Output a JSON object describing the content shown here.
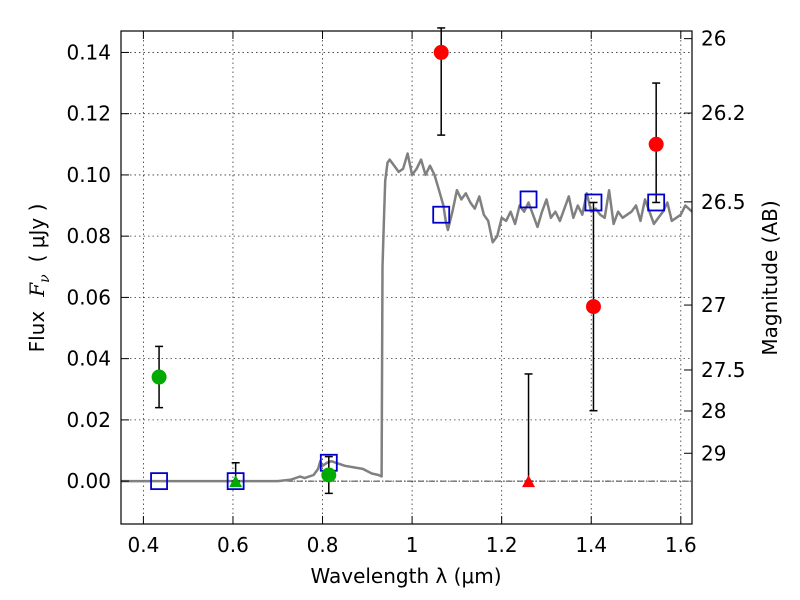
{
  "chart_data": {
    "type": "scatter",
    "xlabel": "Wavelength  λ (μm)",
    "ylabel": "Flux  F_ν  ( μJy )",
    "ylabel_prefix": "Flux",
    "ylabel_symbol": "F",
    "ylabel_sub": "ν",
    "ylabel_unit": "( μJy )",
    "y2label": "Magnitude (AB)",
    "xlim": [
      0.35,
      1.625
    ],
    "ylim": [
      -0.014,
      0.147
    ],
    "grid": true,
    "x_ticks": [
      0.4,
      0.6,
      0.8,
      1.0,
      1.2,
      1.4,
      1.6
    ],
    "x_tick_labels": [
      "0.4",
      "0.6",
      "0.8",
      "1",
      "1.2",
      "1.4",
      "1.6"
    ],
    "y_ticks": [
      0.0,
      0.02,
      0.04,
      0.06,
      0.08,
      0.1,
      0.12,
      0.14
    ],
    "y_tick_labels": [
      "0.00",
      "0.02",
      "0.04",
      "0.06",
      "0.08",
      "0.10",
      "0.12",
      "0.14"
    ],
    "mag_ticks": [
      {
        "label": "26",
        "flux": 0.1445
      },
      {
        "label": "26.2",
        "flux": 0.1202
      },
      {
        "label": "26.5",
        "flux": 0.0912
      },
      {
        "label": "27",
        "flux": 0.0575
      },
      {
        "label": "27.5",
        "flux": 0.0363
      },
      {
        "label": "28",
        "flux": 0.0229
      },
      {
        "label": "29",
        "flux": 0.0091
      }
    ],
    "colors": {
      "model": "#808080",
      "synthetic": "#0000cc",
      "optical": "#00aa00",
      "nir": "#ff0000",
      "errorbar": "#000000"
    },
    "model_spectrum": {
      "x": [
        0.35,
        0.4,
        0.5,
        0.6,
        0.7,
        0.73,
        0.75,
        0.76,
        0.78,
        0.79,
        0.795,
        0.8,
        0.81,
        0.82,
        0.83,
        0.85,
        0.87,
        0.89,
        0.91,
        0.925,
        0.932,
        0.934,
        0.937,
        0.94,
        0.945,
        0.95,
        0.96,
        0.97,
        0.98,
        0.99,
        1.0,
        1.01,
        1.02,
        1.03,
        1.04,
        1.05,
        1.06,
        1.07,
        1.075,
        1.08,
        1.09,
        1.1,
        1.11,
        1.12,
        1.13,
        1.14,
        1.15,
        1.16,
        1.17,
        1.18,
        1.19,
        1.2,
        1.21,
        1.22,
        1.23,
        1.24,
        1.25,
        1.26,
        1.27,
        1.28,
        1.29,
        1.3,
        1.31,
        1.32,
        1.33,
        1.34,
        1.35,
        1.36,
        1.37,
        1.38,
        1.39,
        1.4,
        1.41,
        1.42,
        1.43,
        1.44,
        1.45,
        1.46,
        1.47,
        1.48,
        1.49,
        1.5,
        1.51,
        1.52,
        1.53,
        1.54,
        1.55,
        1.56,
        1.57,
        1.58,
        1.59,
        1.6,
        1.61,
        1.625
      ],
      "y": [
        0.0,
        0.0,
        0.0,
        0.0,
        0.0,
        0.0005,
        0.0015,
        0.001,
        0.002,
        0.004,
        0.0065,
        0.005,
        0.006,
        0.0065,
        0.006,
        0.005,
        0.0045,
        0.004,
        0.0025,
        0.002,
        0.0015,
        0.07,
        0.085,
        0.098,
        0.104,
        0.105,
        0.103,
        0.101,
        0.102,
        0.107,
        0.1,
        0.102,
        0.105,
        0.1,
        0.103,
        0.1,
        0.095,
        0.09,
        0.085,
        0.082,
        0.088,
        0.095,
        0.092,
        0.094,
        0.091,
        0.089,
        0.093,
        0.087,
        0.085,
        0.078,
        0.08,
        0.086,
        0.085,
        0.088,
        0.084,
        0.09,
        0.088,
        0.091,
        0.087,
        0.083,
        0.088,
        0.092,
        0.086,
        0.088,
        0.085,
        0.089,
        0.093,
        0.086,
        0.09,
        0.087,
        0.094,
        0.088,
        0.089,
        0.087,
        0.086,
        0.095,
        0.084,
        0.088,
        0.086,
        0.087,
        0.088,
        0.09,
        0.085,
        0.092,
        0.088,
        0.084,
        0.086,
        0.088,
        0.091,
        0.085,
        0.086,
        0.087,
        0.09,
        0.088
      ]
    },
    "synthetic_points": {
      "marker": "open-square",
      "x": [
        0.435,
        0.606,
        0.814,
        1.065,
        1.26,
        1.405,
        1.545
      ],
      "y": [
        0.0,
        0.0,
        0.006,
        0.087,
        0.092,
        0.091,
        0.091
      ]
    },
    "optical_detections": {
      "marker": "circle",
      "points": [
        {
          "x": 0.435,
          "y": 0.034,
          "yerr_low": 0.024,
          "yerr_high": 0.044
        },
        {
          "x": 0.814,
          "y": 0.002,
          "yerr_low": -0.004,
          "yerr_high": 0.008
        }
      ]
    },
    "optical_upper_limits": {
      "marker": "triangle",
      "points": [
        {
          "x": 0.606,
          "y": 0.0,
          "yerr_low": 0.0,
          "yerr_high": 0.006
        }
      ]
    },
    "nir_detections": {
      "marker": "circle",
      "points": [
        {
          "x": 1.065,
          "y": 0.14,
          "yerr_low": 0.113,
          "yerr_high": 0.148
        },
        {
          "x": 1.405,
          "y": 0.057,
          "yerr_low": 0.023,
          "yerr_high": 0.091
        },
        {
          "x": 1.545,
          "y": 0.11,
          "yerr_low": 0.091,
          "yerr_high": 0.13
        }
      ]
    },
    "nir_upper_limits": {
      "marker": "triangle",
      "points": [
        {
          "x": 1.26,
          "y": 0.0,
          "yerr_low": 0.0,
          "yerr_high": 0.035
        }
      ]
    }
  }
}
